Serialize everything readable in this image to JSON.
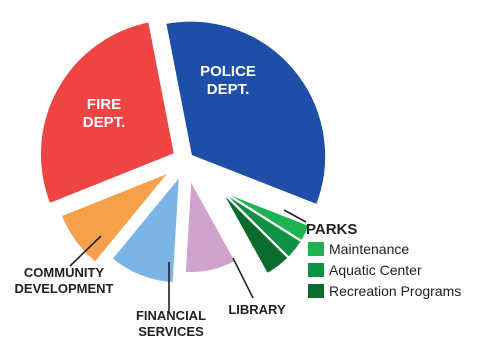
{
  "chart_data": {
    "type": "pie",
    "title": "",
    "slices": [
      {
        "label": "POLICE DEPT.",
        "value": 34.0,
        "color": "#1f4ea8",
        "label_color": "#ffffff"
      },
      {
        "label": "PARKS",
        "value": 11.0,
        "color": "#109944",
        "group": [
          {
            "label": "Maintenance",
            "value": 3.0,
            "color": "#1db34f"
          },
          {
            "label": "Aquatic Center",
            "value": 3.5,
            "color": "#0f9143"
          },
          {
            "label": "Recreation Programs",
            "value": 4.5,
            "color": "#0b6b2f"
          }
        ]
      },
      {
        "label": "LIBRARY",
        "value": 9.0,
        "color": "#cfa3cc"
      },
      {
        "label": "FINANCIAL SERVICES",
        "value": 10.0,
        "color": "#7db4e6"
      },
      {
        "label": "COMMUNITY DEVELOPMENT",
        "value": 8.0,
        "color": "#f5a04a"
      },
      {
        "label": "FIRE DEPT.",
        "value": 28.0,
        "color": "#ee4444",
        "label_color": "#ffffff"
      }
    ],
    "legend": {
      "title": "PARKS",
      "items": [
        {
          "label": "Maintenance",
          "color": "#1db34f"
        },
        {
          "label": "Aquatic Center",
          "color": "#0f9143"
        },
        {
          "label": "Recreation Programs",
          "color": "#0b6b2f"
        }
      ]
    }
  }
}
